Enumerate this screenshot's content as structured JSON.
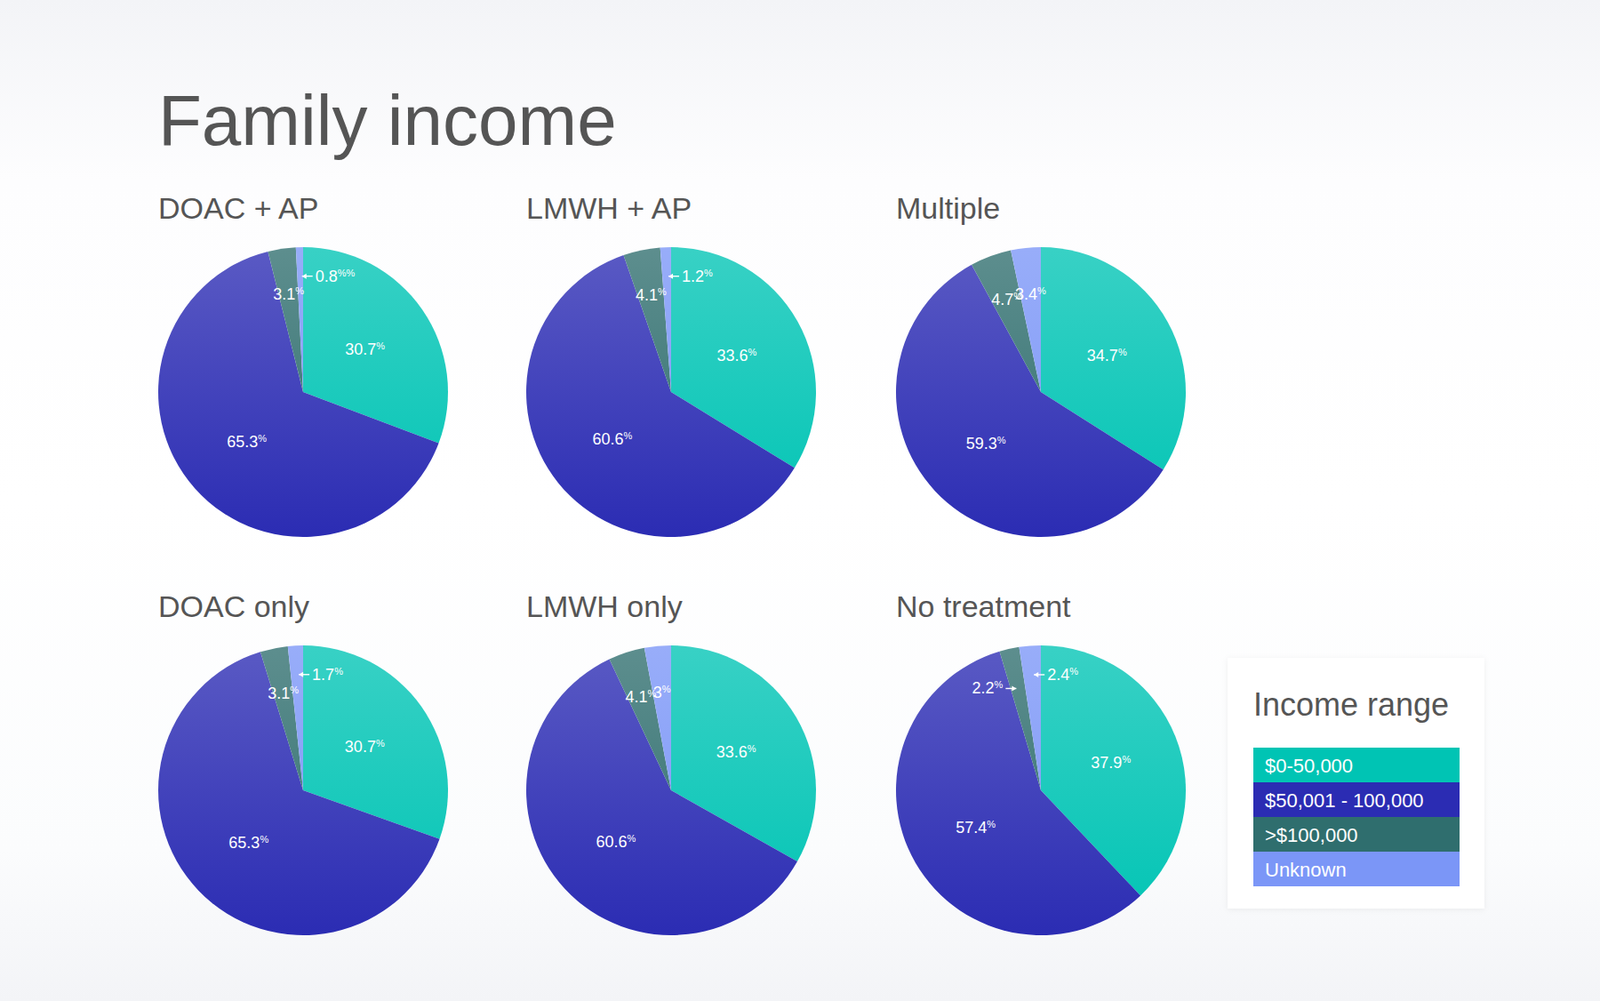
{
  "title": "Family income",
  "legend_title": "Income range",
  "legend": "bottom-right",
  "categories": [
    "$0-50,000",
    "$50,001 - 100,000",
    ">$100,000",
    "Unknown"
  ],
  "colors": [
    "#00c4b4",
    "#2b2cb3",
    "#2f6e6e",
    "#7b96f7"
  ],
  "chart_data": [
    {
      "type": "pie",
      "title": "DOAC + AP",
      "values": [
        30.7,
        65.3,
        3.1,
        0.8
      ],
      "value_labels": [
        "30.7%",
        "65.3%",
        "3.1%",
        "0.8%%"
      ],
      "data_labels": true
    },
    {
      "type": "pie",
      "title": "LMWH + AP",
      "values": [
        33.6,
        60.6,
        4.1,
        1.2
      ],
      "value_labels": [
        "33.6%",
        "60.6%",
        "4.1%",
        "1.2%"
      ],
      "data_labels": true
    },
    {
      "type": "pie",
      "title": "Multiple",
      "values": [
        34.7,
        59.3,
        4.7,
        3.4
      ],
      "value_labels": [
        "34.7%",
        "59.3%",
        "4.7%",
        "3.4%"
      ],
      "data_labels": true
    },
    {
      "type": "pie",
      "title": "DOAC only",
      "values": [
        30.7,
        65.3,
        3.1,
        1.7
      ],
      "value_labels": [
        "30.7%",
        "65.3%",
        "3.1%",
        "1.7%"
      ],
      "data_labels": true
    },
    {
      "type": "pie",
      "title": "LMWH only",
      "values": [
        33.6,
        60.6,
        4.1,
        3
      ],
      "value_labels": [
        "33.6%",
        "60.6%",
        "4.1%",
        "3%"
      ],
      "data_labels": true
    },
    {
      "type": "pie",
      "title": "No treatment",
      "values": [
        37.9,
        57.4,
        2.2,
        2.4
      ],
      "value_labels": [
        "37.9%",
        "57.4%",
        "2.2%",
        "2.4%"
      ],
      "data_labels": true
    }
  ]
}
